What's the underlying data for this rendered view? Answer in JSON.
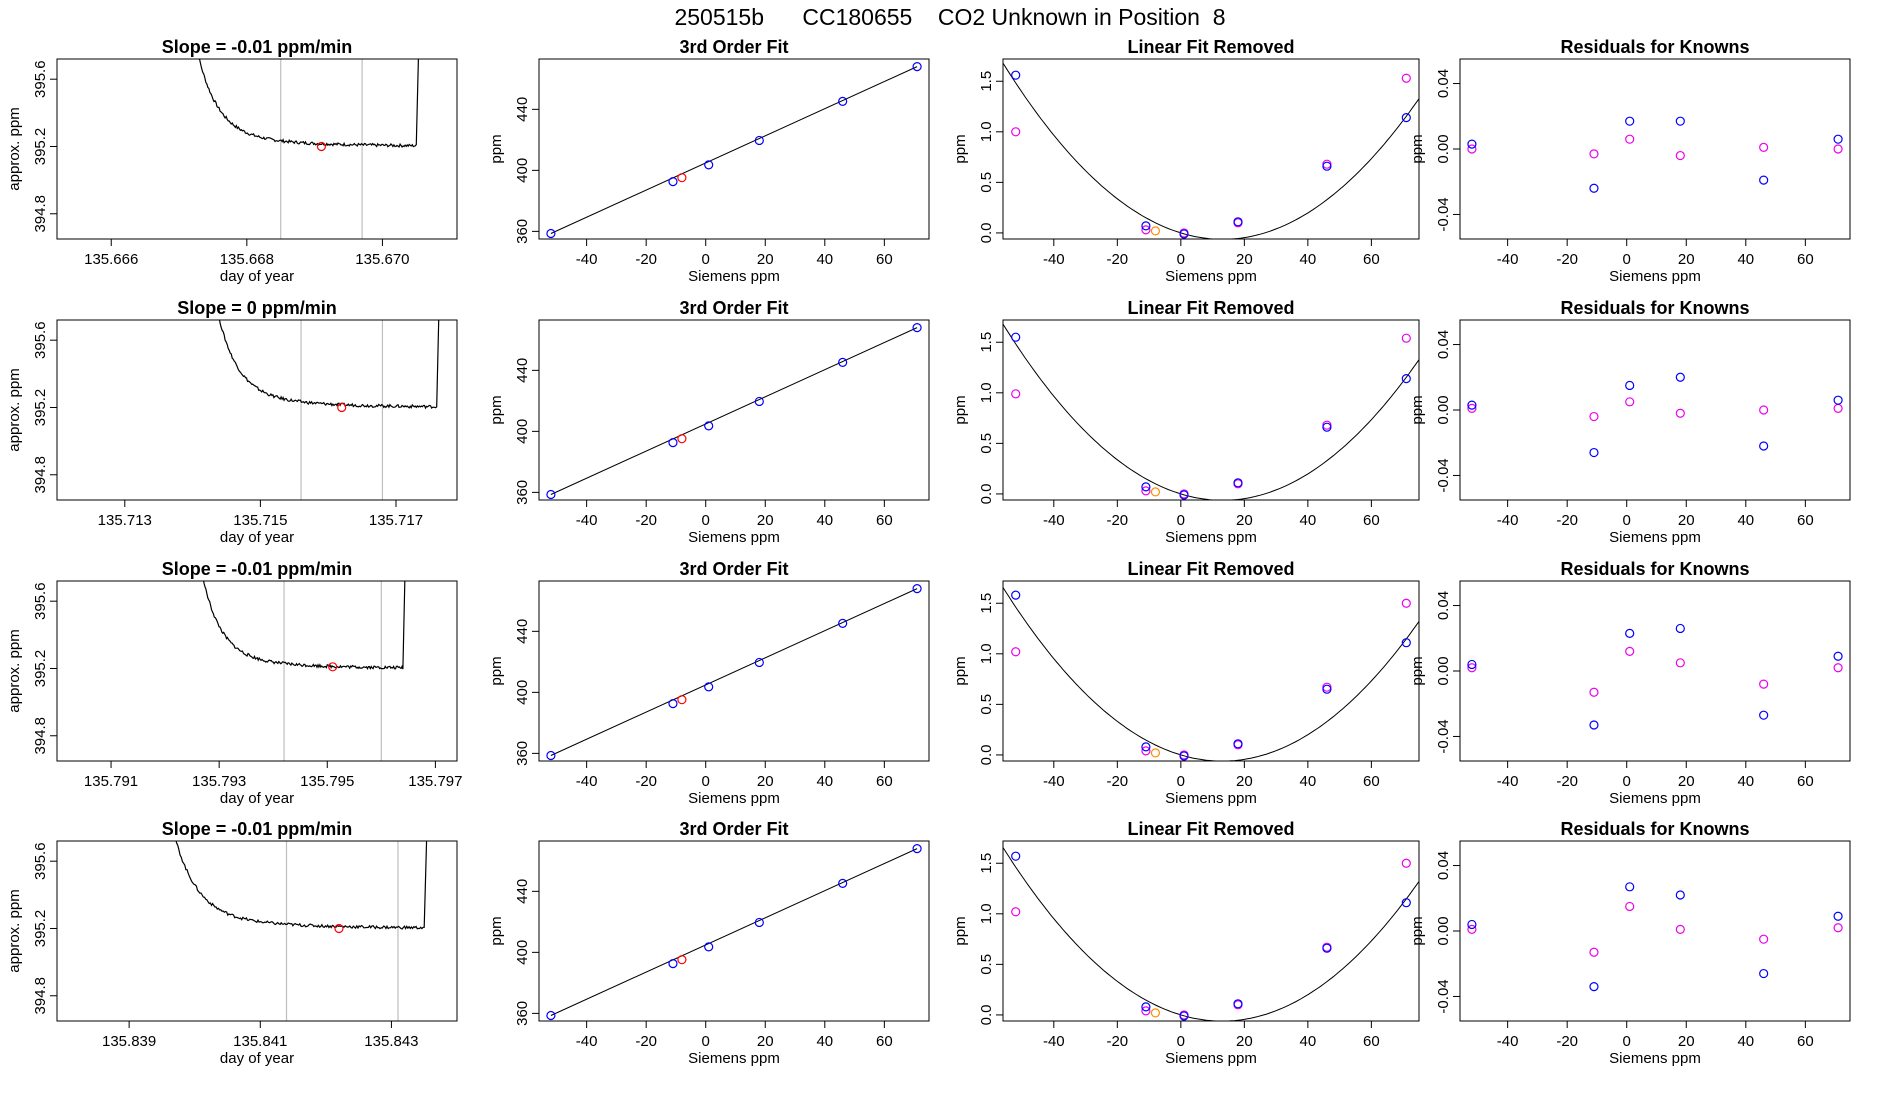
{
  "title": "250515b      CC180655    CO2 Unknown in Position  8",
  "colors": {
    "trace": "#000000",
    "vline": "#bebebe",
    "known_point": "#0000ff",
    "unknown_point": "#ff0000",
    "residual_alt": "#ee00ee",
    "fit_alt": "#ee00ee",
    "fit_unknown": "#ff8c00"
  },
  "common": {
    "siemens_xlabel": "Siemens ppm",
    "ppm_ylabel": "ppm",
    "time_xlabel": "day of year",
    "time_ylabel": "approx. ppm",
    "fit_title": "3rd Order Fit",
    "linear_title": "Linear Fit Removed",
    "resid_title": "Residuals for Knowns"
  },
  "chart_data": [
    {
      "panel": "time-series",
      "type": "line",
      "title": "Slope =  -0.01  ppm/min",
      "xlabel": "day of year",
      "ylabel": "approx. ppm",
      "xlim": [
        135.6652,
        135.6711
      ],
      "ylim": [
        394.65,
        395.72
      ],
      "xticks": [
        "135.666",
        "135.668",
        "135.670"
      ],
      "xtick_values": [
        135.666,
        135.668,
        135.67
      ],
      "yticks": [
        "394.8",
        "395.2",
        "395.6"
      ],
      "ytick_values": [
        394.8,
        395.2,
        395.6
      ],
      "vlines": [
        135.6685,
        135.6697
      ],
      "marker": {
        "x": 135.6691,
        "y": 395.2
      },
      "trace": {
        "x_start": 135.6672,
        "x_end": 135.6705,
        "y_plateau": 395.2,
        "y_top": 395.72
      }
    },
    {
      "panel": "time-series",
      "type": "line",
      "title": "Slope =  0  ppm/min",
      "xlabel": "day of year",
      "ylabel": "approx. ppm",
      "xlim": [
        135.712,
        135.7179
      ],
      "ylim": [
        394.65,
        395.72
      ],
      "xticks": [
        "135.713",
        "135.715",
        "135.717"
      ],
      "xtick_values": [
        135.713,
        135.715,
        135.717
      ],
      "yticks": [
        "394.8",
        "395.2",
        "395.6"
      ],
      "ytick_values": [
        394.8,
        395.2,
        395.6
      ],
      "vlines": [
        135.7156,
        135.7168
      ],
      "marker": {
        "x": 135.7162,
        "y": 395.2
      },
      "trace": {
        "x_start": 135.7143,
        "x_end": 135.7176,
        "y_plateau": 395.2,
        "y_top": 395.72
      }
    },
    {
      "panel": "time-series",
      "type": "line",
      "title": "Slope =  -0.01  ppm/min",
      "xlabel": "day of year",
      "ylabel": "approx. ppm",
      "xlim": [
        135.79,
        135.7974
      ],
      "ylim": [
        394.65,
        395.72
      ],
      "xticks": [
        "135.791",
        "135.793",
        "135.795",
        "135.797"
      ],
      "xtick_values": [
        135.791,
        135.793,
        135.795,
        135.797
      ],
      "yticks": [
        "394.8",
        "395.2",
        "395.6"
      ],
      "ytick_values": [
        394.8,
        395.2,
        395.6
      ],
      "vlines": [
        135.7942,
        135.796
      ],
      "marker": {
        "x": 135.7951,
        "y": 395.21
      },
      "trace": {
        "x_start": 135.7926,
        "x_end": 135.7964,
        "y_plateau": 395.2,
        "y_top": 395.72
      }
    },
    {
      "panel": "time-series",
      "type": "line",
      "title": "Slope =  -0.01  ppm/min",
      "xlabel": "day of year",
      "ylabel": "approx. ppm",
      "xlim": [
        135.8379,
        135.844
      ],
      "ylim": [
        394.65,
        395.72
      ],
      "xticks": [
        "135.839",
        "135.841",
        "135.843"
      ],
      "xtick_values": [
        135.839,
        135.841,
        135.843
      ],
      "yticks": [
        "394.8",
        "395.2",
        "395.6"
      ],
      "ytick_values": [
        394.8,
        395.2,
        395.6
      ],
      "vlines": [
        135.8414,
        135.8431
      ],
      "marker": {
        "x": 135.8422,
        "y": 395.2
      },
      "trace": {
        "x_start": 135.8396,
        "x_end": 135.8435,
        "y_plateau": 395.2,
        "y_top": 395.72
      }
    },
    {
      "panel": "fit",
      "type": "scatter",
      "title": "3rd Order Fit",
      "xlabel": "Siemens ppm",
      "ylabel": "ppm",
      "xlim": [
        -56,
        75
      ],
      "ylim": [
        355,
        473
      ],
      "xticks": [
        "-40",
        "-20",
        "0",
        "20",
        "40",
        "60"
      ],
      "xtick_values": [
        -40,
        -20,
        0,
        20,
        40,
        60
      ],
      "yticks": [
        "360",
        "400",
        "440"
      ],
      "ytick_values": [
        360,
        400,
        440
      ],
      "knowns": [
        [
          -52,
          358.6
        ],
        [
          -11,
          392.6
        ],
        [
          1,
          403.6
        ],
        [
          18,
          419.6
        ],
        [
          46,
          445.2
        ],
        [
          71,
          468.0
        ]
      ],
      "unknown": [
        -8,
        395.2
      ],
      "line": [
        [
          -52,
          358.6
        ],
        [
          71,
          468.0
        ]
      ]
    },
    {
      "panel": "fit",
      "type": "scatter",
      "title": "3rd Order Fit",
      "xlabel": "Siemens ppm",
      "ylabel": "ppm",
      "xlim": [
        -56,
        75
      ],
      "ylim": [
        355,
        473
      ],
      "xticks": [
        "-40",
        "-20",
        "0",
        "20",
        "40",
        "60"
      ],
      "xtick_values": [
        -40,
        -20,
        0,
        20,
        40,
        60
      ],
      "yticks": [
        "360",
        "400",
        "440"
      ],
      "ytick_values": [
        360,
        400,
        440
      ],
      "knowns": [
        [
          -52,
          358.6
        ],
        [
          -11,
          392.6
        ],
        [
          1,
          403.6
        ],
        [
          18,
          419.6
        ],
        [
          46,
          445.2
        ],
        [
          71,
          468.0
        ]
      ],
      "unknown": [
        -8,
        395.2
      ],
      "line": [
        [
          -52,
          358.6
        ],
        [
          71,
          468.0
        ]
      ]
    },
    {
      "panel": "fit",
      "type": "scatter",
      "title": "3rd Order Fit",
      "xlabel": "Siemens ppm",
      "ylabel": "ppm",
      "xlim": [
        -56,
        75
      ],
      "ylim": [
        355,
        473
      ],
      "xticks": [
        "-40",
        "-20",
        "0",
        "20",
        "40",
        "60"
      ],
      "xtick_values": [
        -40,
        -20,
        0,
        20,
        40,
        60
      ],
      "yticks": [
        "360",
        "400",
        "440"
      ],
      "ytick_values": [
        360,
        400,
        440
      ],
      "knowns": [
        [
          -52,
          358.6
        ],
        [
          -11,
          392.6
        ],
        [
          1,
          403.6
        ],
        [
          18,
          419.6
        ],
        [
          46,
          445.2
        ],
        [
          71,
          468.0
        ]
      ],
      "unknown": [
        -8,
        395.2
      ],
      "line": [
        [
          -52,
          358.6
        ],
        [
          71,
          468.0
        ]
      ]
    },
    {
      "panel": "fit",
      "type": "scatter",
      "title": "3rd Order Fit",
      "xlabel": "Siemens ppm",
      "ylabel": "ppm",
      "xlim": [
        -56,
        75
      ],
      "ylim": [
        355,
        473
      ],
      "xticks": [
        "-40",
        "-20",
        "0",
        "20",
        "40",
        "60"
      ],
      "xtick_values": [
        -40,
        -20,
        0,
        20,
        40,
        60
      ],
      "yticks": [
        "360",
        "400",
        "440"
      ],
      "ytick_values": [
        360,
        400,
        440
      ],
      "knowns": [
        [
          -52,
          358.6
        ],
        [
          -11,
          392.6
        ],
        [
          1,
          403.6
        ],
        [
          18,
          419.6
        ],
        [
          46,
          445.2
        ],
        [
          71,
          468.0
        ]
      ],
      "unknown": [
        -8,
        395.2
      ],
      "line": [
        [
          -52,
          358.6
        ],
        [
          71,
          468.0
        ]
      ]
    },
    {
      "panel": "linear-removed",
      "type": "scatter",
      "title": "Linear Fit Removed",
      "xlabel": "Siemens ppm",
      "ylabel": "ppm",
      "xlim": [
        -56,
        75
      ],
      "ylim": [
        -0.06,
        1.72
      ],
      "xticks": [
        "-40",
        "-20",
        "0",
        "20",
        "40",
        "60"
      ],
      "xtick_values": [
        -40,
        -20,
        0,
        20,
        40,
        60
      ],
      "yticks": [
        "0.0",
        "0.5",
        "1.0",
        "1.5"
      ],
      "ytick_values": [
        0,
        0.5,
        1.0,
        1.5
      ],
      "knowns": [
        [
          -52,
          1.56
        ],
        [
          -11,
          0.07
        ],
        [
          1,
          -0.01
        ],
        [
          18,
          0.11
        ],
        [
          46,
          0.66
        ],
        [
          71,
          1.14
        ]
      ],
      "alt_points": [
        [
          -52,
          1.0
        ],
        [
          -11,
          0.03
        ],
        [
          1,
          0.0
        ],
        [
          18,
          0.1
        ],
        [
          46,
          0.68
        ],
        [
          71,
          1.53
        ]
      ],
      "unknown": [
        -8,
        0.02
      ],
      "curve_coeffs": [
        0.0,
        -0.0096,
        0.000364
      ]
    },
    {
      "panel": "linear-removed",
      "type": "scatter",
      "title": "Linear Fit Removed",
      "xlabel": "Siemens ppm",
      "ylabel": "ppm",
      "xlim": [
        -56,
        75
      ],
      "ylim": [
        -0.06,
        1.72
      ],
      "xticks": [
        "-40",
        "-20",
        "0",
        "20",
        "40",
        "60"
      ],
      "xtick_values": [
        -40,
        -20,
        0,
        20,
        40,
        60
      ],
      "yticks": [
        "0.0",
        "0.5",
        "1.0",
        "1.5"
      ],
      "ytick_values": [
        0,
        0.5,
        1.0,
        1.5
      ],
      "knowns": [
        [
          -52,
          1.55
        ],
        [
          -11,
          0.07
        ],
        [
          1,
          -0.01
        ],
        [
          18,
          0.11
        ],
        [
          46,
          0.66
        ],
        [
          71,
          1.14
        ]
      ],
      "alt_points": [
        [
          -52,
          0.99
        ],
        [
          -11,
          0.03
        ],
        [
          1,
          0.0
        ],
        [
          18,
          0.1
        ],
        [
          46,
          0.68
        ],
        [
          71,
          1.54
        ]
      ],
      "unknown": [
        -8,
        0.02
      ],
      "curve_coeffs": [
        0.0,
        -0.0096,
        0.000364
      ]
    },
    {
      "panel": "linear-removed",
      "type": "scatter",
      "title": "Linear Fit Removed",
      "xlabel": "Siemens ppm",
      "ylabel": "ppm",
      "xlim": [
        -56,
        75
      ],
      "ylim": [
        -0.06,
        1.72
      ],
      "xticks": [
        "-40",
        "-20",
        "0",
        "20",
        "40",
        "60"
      ],
      "xtick_values": [
        -40,
        -20,
        0,
        20,
        40,
        60
      ],
      "yticks": [
        "0.0",
        "0.5",
        "1.0",
        "1.5"
      ],
      "ytick_values": [
        0,
        0.5,
        1.0,
        1.5
      ],
      "knowns": [
        [
          -52,
          1.58
        ],
        [
          -11,
          0.08
        ],
        [
          1,
          -0.01
        ],
        [
          18,
          0.11
        ],
        [
          46,
          0.65
        ],
        [
          71,
          1.11
        ]
      ],
      "alt_points": [
        [
          -52,
          1.02
        ],
        [
          -11,
          0.04
        ],
        [
          1,
          0.0
        ],
        [
          18,
          0.1
        ],
        [
          46,
          0.67
        ],
        [
          71,
          1.5
        ]
      ],
      "unknown": [
        -8,
        0.02
      ],
      "curve_coeffs": [
        0.0,
        -0.0094,
        0.00036
      ]
    },
    {
      "panel": "linear-removed",
      "type": "scatter",
      "title": "Linear Fit Removed",
      "xlabel": "Siemens ppm",
      "ylabel": "ppm",
      "xlim": [
        -56,
        75
      ],
      "ylim": [
        -0.06,
        1.72
      ],
      "xticks": [
        "-40",
        "-20",
        "0",
        "20",
        "40",
        "60"
      ],
      "xtick_values": [
        -40,
        -20,
        0,
        20,
        40,
        60
      ],
      "yticks": [
        "0.0",
        "0.5",
        "1.0",
        "1.5"
      ],
      "ytick_values": [
        0,
        0.5,
        1.0,
        1.5
      ],
      "knowns": [
        [
          -52,
          1.57
        ],
        [
          -11,
          0.08
        ],
        [
          1,
          -0.01
        ],
        [
          18,
          0.11
        ],
        [
          46,
          0.66
        ],
        [
          71,
          1.11
        ]
      ],
      "alt_points": [
        [
          -52,
          1.02
        ],
        [
          -11,
          0.04
        ],
        [
          1,
          0.0
        ],
        [
          18,
          0.1
        ],
        [
          46,
          0.67
        ],
        [
          71,
          1.5
        ]
      ],
      "unknown": [
        -8,
        0.02
      ],
      "curve_coeffs": [
        0.0,
        -0.0094,
        0.00036
      ]
    },
    {
      "panel": "residuals",
      "type": "scatter",
      "title": "Residuals for Knowns",
      "xlabel": "Siemens ppm",
      "ylabel": "ppm",
      "xlim": [
        -56,
        75
      ],
      "ylim": [
        -0.055,
        0.055
      ],
      "xticks": [
        "-40",
        "-20",
        "0",
        "20",
        "40",
        "60"
      ],
      "xtick_values": [
        -40,
        -20,
        0,
        20,
        40,
        60
      ],
      "yticks": [
        "-0.04",
        "0.00",
        "0.04"
      ],
      "ytick_values": [
        -0.04,
        0,
        0.04
      ],
      "knowns": [
        [
          -52,
          0.003
        ],
        [
          -11,
          -0.024
        ],
        [
          1,
          0.017
        ],
        [
          18,
          0.017
        ],
        [
          46,
          -0.019
        ],
        [
          71,
          0.006
        ]
      ],
      "alt_points": [
        [
          -52,
          0.0
        ],
        [
          -11,
          -0.003
        ],
        [
          1,
          0.006
        ],
        [
          18,
          -0.004
        ],
        [
          46,
          0.001
        ],
        [
          71,
          0.0
        ]
      ]
    },
    {
      "panel": "residuals",
      "type": "scatter",
      "title": "Residuals for Knowns",
      "xlabel": "Siemens ppm",
      "ylabel": "ppm",
      "xlim": [
        -56,
        75
      ],
      "ylim": [
        -0.055,
        0.055
      ],
      "xticks": [
        "-40",
        "-20",
        "0",
        "20",
        "40",
        "60"
      ],
      "xtick_values": [
        -40,
        -20,
        0,
        20,
        40,
        60
      ],
      "yticks": [
        "-0.04",
        "0.00",
        "0.04"
      ],
      "ytick_values": [
        -0.04,
        0,
        0.04
      ],
      "knowns": [
        [
          -52,
          0.003
        ],
        [
          -11,
          -0.026
        ],
        [
          1,
          0.015
        ],
        [
          18,
          0.02
        ],
        [
          46,
          -0.022
        ],
        [
          71,
          0.006
        ]
      ],
      "alt_points": [
        [
          -52,
          0.001
        ],
        [
          -11,
          -0.004
        ],
        [
          1,
          0.005
        ],
        [
          18,
          -0.002
        ],
        [
          46,
          0.0
        ],
        [
          71,
          0.001
        ]
      ]
    },
    {
      "panel": "residuals",
      "type": "scatter",
      "title": "Residuals for Knowns",
      "xlabel": "Siemens ppm",
      "ylabel": "ppm",
      "xlim": [
        -56,
        75
      ],
      "ylim": [
        -0.055,
        0.055
      ],
      "xticks": [
        "-40",
        "-20",
        "0",
        "20",
        "40",
        "60"
      ],
      "xtick_values": [
        -40,
        -20,
        0,
        20,
        40,
        60
      ],
      "yticks": [
        "-0.04",
        "0.00",
        "0.04"
      ],
      "ytick_values": [
        -0.04,
        0,
        0.04
      ],
      "knowns": [
        [
          -52,
          0.004
        ],
        [
          -11,
          -0.033
        ],
        [
          1,
          0.023
        ],
        [
          18,
          0.026
        ],
        [
          46,
          -0.027
        ],
        [
          71,
          0.009
        ]
      ],
      "alt_points": [
        [
          -52,
          0.002
        ],
        [
          -11,
          -0.013
        ],
        [
          1,
          0.012
        ],
        [
          18,
          0.005
        ],
        [
          46,
          -0.008
        ],
        [
          71,
          0.002
        ]
      ]
    },
    {
      "panel": "residuals",
      "type": "scatter",
      "title": "Residuals for Knowns",
      "xlabel": "Siemens ppm",
      "ylabel": "ppm",
      "xlim": [
        -56,
        75
      ],
      "ylim": [
        -0.055,
        0.055
      ],
      "xticks": [
        "-40",
        "-20",
        "0",
        "20",
        "40",
        "60"
      ],
      "xtick_values": [
        -40,
        -20,
        0,
        20,
        40,
        60
      ],
      "yticks": [
        "-0.04",
        "0.00",
        "0.04"
      ],
      "ytick_values": [
        -0.04,
        0,
        0.04
      ],
      "knowns": [
        [
          -52,
          0.004
        ],
        [
          -11,
          -0.034
        ],
        [
          1,
          0.027
        ],
        [
          18,
          0.022
        ],
        [
          46,
          -0.026
        ],
        [
          71,
          0.009
        ]
      ],
      "alt_points": [
        [
          -52,
          0.001
        ],
        [
          -11,
          -0.013
        ],
        [
          1,
          0.015
        ],
        [
          18,
          0.001
        ],
        [
          46,
          -0.005
        ],
        [
          71,
          0.002
        ]
      ]
    }
  ]
}
